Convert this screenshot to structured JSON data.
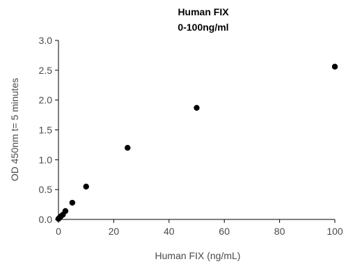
{
  "chart_data": {
    "type": "scatter",
    "title": "Human FIX",
    "subtitle": "0-100ng/ml",
    "xlabel": "Human FIX (ng/mL)",
    "ylabel": "OD 450nm t= 5 minutes",
    "xlim": [
      0,
      100
    ],
    "ylim": [
      0,
      3.0
    ],
    "xticks": [
      0,
      20,
      40,
      60,
      80,
      100
    ],
    "yticks": [
      0,
      0.5,
      1.0,
      1.5,
      2.0,
      2.5,
      3.0
    ],
    "xtick_labels": [
      "0",
      "20",
      "40",
      "60",
      "80",
      "100"
    ],
    "ytick_labels": [
      "0.0",
      "0.5",
      "1.0",
      "1.5",
      "2.0",
      "2.5",
      "3.0"
    ],
    "grid": false,
    "legend": "none",
    "marker_color": "#000000",
    "axis_color": "#000000",
    "text_color": "#4a4a4a",
    "points": [
      {
        "x": 0,
        "y": 0.01
      },
      {
        "x": 0.2,
        "y": 0.02
      },
      {
        "x": 0.4,
        "y": 0.03
      },
      {
        "x": 0.8,
        "y": 0.05
      },
      {
        "x": 1.6,
        "y": 0.08
      },
      {
        "x": 2.5,
        "y": 0.14
      },
      {
        "x": 5,
        "y": 0.28
      },
      {
        "x": 10,
        "y": 0.55
      },
      {
        "x": 25,
        "y": 1.2
      },
      {
        "x": 50,
        "y": 1.87
      },
      {
        "x": 100,
        "y": 2.56
      }
    ]
  }
}
